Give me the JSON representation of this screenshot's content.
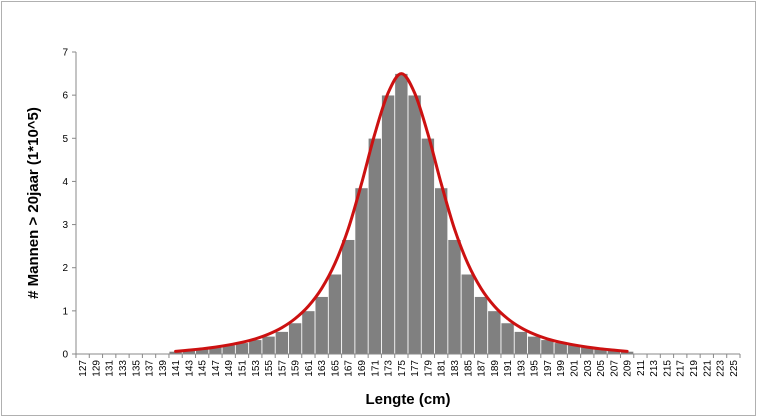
{
  "chart_data": {
    "type": "bar",
    "title": "",
    "xlabel": "Lengte (cm)",
    "ylabel": "# Mannen > 20jaar (1*10^5)",
    "ylim": [
      0,
      7
    ],
    "yticks": [
      "0",
      "1",
      "2",
      "3",
      "4",
      "5",
      "6",
      "7"
    ],
    "categories": [
      "127",
      "129",
      "131",
      "133",
      "135",
      "137",
      "139",
      "141",
      "143",
      "145",
      "147",
      "149",
      "151",
      "153",
      "155",
      "157",
      "159",
      "161",
      "163",
      "165",
      "167",
      "169",
      "171",
      "173",
      "175",
      "177",
      "179",
      "181",
      "183",
      "185",
      "187",
      "189",
      "191",
      "193",
      "195",
      "197",
      "199",
      "201",
      "203",
      "205",
      "207",
      "209",
      "211",
      "213",
      "215",
      "217",
      "219",
      "221",
      "223",
      "225"
    ],
    "values": [
      0,
      0,
      0,
      0,
      0,
      0,
      0,
      0.06,
      0.09,
      0.12,
      0.16,
      0.21,
      0.26,
      0.33,
      0.41,
      0.52,
      0.72,
      1.0,
      1.33,
      1.85,
      2.65,
      3.85,
      5.0,
      6.0,
      6.5,
      6.0,
      5.0,
      3.85,
      2.65,
      1.85,
      1.33,
      1.0,
      0.72,
      0.52,
      0.41,
      0.33,
      0.26,
      0.21,
      0.16,
      0.12,
      0.09,
      0.06,
      0,
      0,
      0,
      0,
      0,
      0,
      0,
      0
    ],
    "bar_color": "#808080",
    "curve": {
      "type": "line",
      "color": "#cc1111",
      "x": [
        "141",
        "143",
        "145",
        "147",
        "149",
        "151",
        "153",
        "155",
        "157",
        "159",
        "161",
        "163",
        "165",
        "167",
        "169",
        "171",
        "173",
        "175",
        "177",
        "179",
        "181",
        "183",
        "185",
        "187",
        "189",
        "191",
        "193",
        "195",
        "197",
        "199",
        "201",
        "203",
        "205",
        "207",
        "209"
      ],
      "values": [
        0.06,
        0.09,
        0.12,
        0.16,
        0.21,
        0.27,
        0.35,
        0.46,
        0.61,
        0.82,
        1.11,
        1.52,
        2.1,
        2.9,
        3.95,
        5.1,
        6.05,
        6.5,
        6.05,
        5.1,
        3.95,
        2.9,
        2.1,
        1.52,
        1.11,
        0.82,
        0.61,
        0.46,
        0.35,
        0.27,
        0.21,
        0.16,
        0.12,
        0.09,
        0.06
      ]
    },
    "grid": false,
    "legend": "none"
  }
}
